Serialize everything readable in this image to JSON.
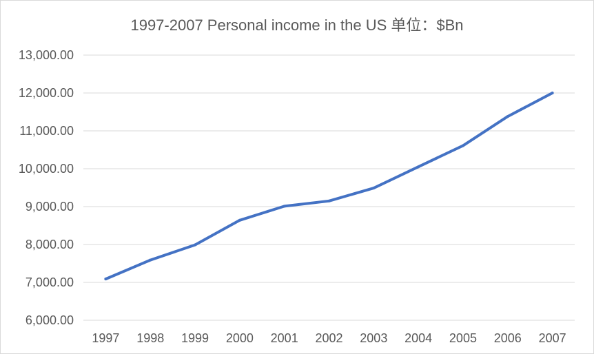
{
  "chart_data": {
    "type": "line",
    "title": "1997-2007 Personal income in the US  单位：$Bn",
    "xlabel": "",
    "ylabel": "",
    "categories": [
      "1997",
      "1998",
      "1999",
      "2000",
      "2001",
      "2002",
      "2003",
      "2004",
      "2005",
      "2006",
      "2007"
    ],
    "series": [
      {
        "values": [
          7090,
          7590,
          7990,
          8640,
          9010,
          9150,
          9490,
          10050,
          10610,
          11380,
          12000
        ]
      }
    ],
    "ylim": [
      6000,
      13000
    ],
    "y_tick_step": 1000,
    "y_tick_labels": [
      "6,000.00",
      "7,000.00",
      "8,000.00",
      "9,000.00",
      "10,000.00",
      "11,000.00",
      "12,000.00",
      "13,000.00"
    ],
    "grid": true,
    "legend": "none",
    "colors": {
      "line": "#4472c4",
      "grid": "#d9d9d9",
      "text": "#595959"
    }
  }
}
